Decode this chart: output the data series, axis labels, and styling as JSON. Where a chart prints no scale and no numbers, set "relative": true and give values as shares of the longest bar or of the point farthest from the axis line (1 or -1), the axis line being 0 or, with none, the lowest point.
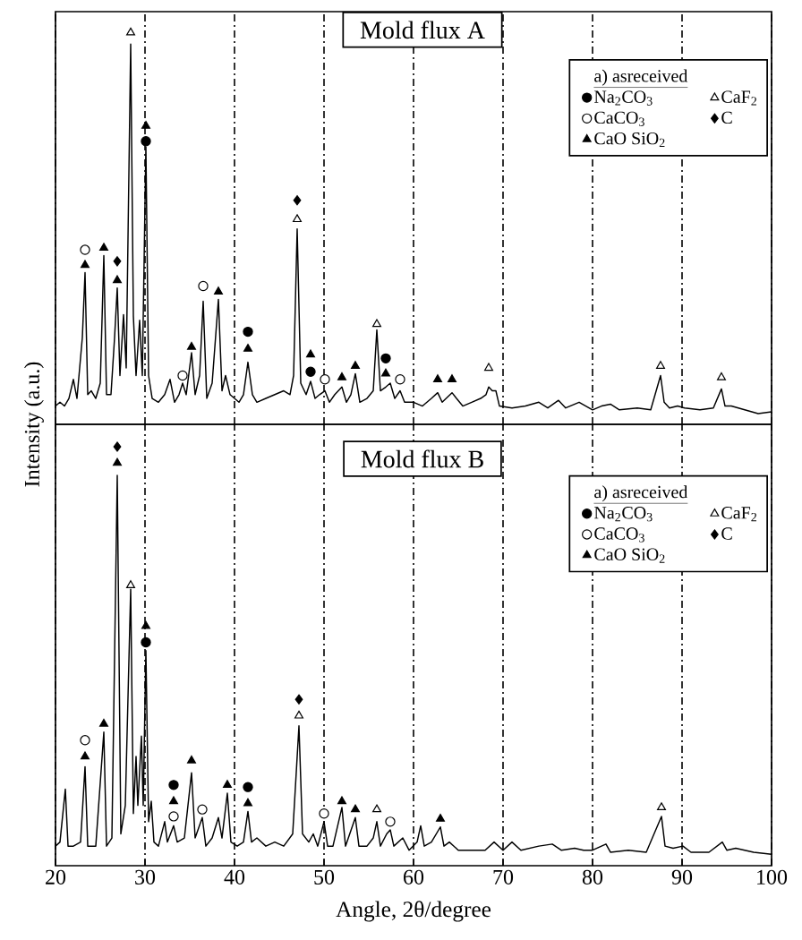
{
  "chart_data": [
    {
      "type": "line",
      "relative": true,
      "title": "Mold flux A",
      "ylabel": "Intensity (a.u.)",
      "legend_title": "a) asreceived",
      "legend": "top right",
      "grid": "x",
      "tick_labels": false,
      "xlim": [
        20,
        100
      ],
      "xticks": [
        20,
        30,
        40,
        50,
        60,
        70,
        80,
        90,
        100
      ],
      "series": [
        {
          "color": "#000000",
          "marker": "none",
          "x": [
            20,
            20.5,
            21,
            21.5,
            22,
            22.4,
            23.0,
            23.3,
            23.6,
            24,
            24.5,
            25.0,
            25.4,
            25.7,
            26.2,
            26.6,
            26.9,
            27.2,
            27.6,
            27.9,
            28.4,
            28.7,
            29.0,
            29.4,
            29.7,
            30.1,
            30.4,
            30.8,
            31.5,
            32.2,
            32.8,
            33.3,
            33.8,
            34.2,
            34.6,
            35.2,
            35.6,
            36.1,
            36.5,
            36.9,
            37.5,
            38.2,
            38.6,
            39.0,
            39.5,
            40,
            40.5,
            41.0,
            41.5,
            42,
            42.5,
            43.5,
            44.5,
            45.5,
            46.2,
            46.6,
            47.0,
            47.4,
            48.0,
            48.5,
            49.0,
            49.5,
            50.1,
            50.6,
            51.2,
            52.0,
            52.5,
            53.0,
            53.5,
            54,
            54.8,
            55.5,
            55.9,
            56.3,
            56.9,
            57.4,
            57.9,
            58.5,
            59,
            60,
            61,
            62,
            62.7,
            63.2,
            64.3,
            64.8,
            65.5,
            66.5,
            67.5,
            68.1,
            68.4,
            68.8,
            69.2,
            69.6,
            71,
            72.5,
            74,
            75,
            76.2,
            77,
            78.5,
            80,
            81,
            82,
            83,
            85,
            86.5,
            87.6,
            88,
            88.6,
            89.5,
            90.3,
            92,
            93.5,
            94.4,
            94.8,
            95.5,
            97,
            98.5,
            100
          ],
          "values": [
            0.02,
            0.03,
            0.02,
            0.04,
            0.09,
            0.04,
            0.2,
            0.37,
            0.05,
            0.06,
            0.04,
            0.08,
            0.415,
            0.05,
            0.05,
            0.2,
            0.33,
            0.1,
            0.26,
            0.12,
            0.97,
            0.256,
            0.1,
            0.245,
            0.1,
            0.7,
            0.1,
            0.04,
            0.03,
            0.05,
            0.09,
            0.03,
            0.05,
            0.08,
            0.05,
            0.16,
            0.05,
            0.1,
            0.295,
            0.04,
            0.08,
            0.3,
            0.06,
            0.1,
            0.05,
            0.04,
            0.03,
            0.05,
            0.135,
            0.05,
            0.03,
            0.04,
            0.05,
            0.06,
            0.05,
            0.1,
            0.485,
            0.08,
            0.05,
            0.085,
            0.04,
            0.05,
            0.06,
            0.03,
            0.05,
            0.07,
            0.03,
            0.05,
            0.105,
            0.03,
            0.04,
            0.06,
            0.22,
            0.06,
            0.07,
            0.08,
            0.04,
            0.06,
            0.03,
            0.03,
            0.02,
            0.04,
            0.055,
            0.03,
            0.055,
            0.04,
            0.02,
            0.03,
            0.04,
            0.05,
            0.07,
            0.06,
            0.06,
            0.02,
            0.015,
            0.02,
            0.03,
            0.015,
            0.035,
            0.015,
            0.03,
            0.01,
            0.02,
            0.025,
            0.01,
            0.015,
            0.01,
            0.1,
            0.03,
            0.015,
            0.02,
            0.015,
            0.01,
            0.015,
            0.065,
            0.02,
            0.02,
            0.01,
            0.0,
            0.005
          ]
        },
        {
          "type": "scatter",
          "name": "Na$_{2}$CO$_{3}$",
          "color": "#000000",
          "marker": "circle",
          "x": [
            30.1,
            41.5,
            48.5,
            56.9
          ],
          "values": [
            0.715,
            0.215,
            0.11,
            0.145
          ]
        },
        {
          "type": "scatter",
          "name": "CaCO$_{3}$",
          "color": "#ffffff",
          "marker": "circle",
          "x": [
            23.3,
            34.2,
            36.5,
            50.1,
            58.5
          ],
          "values": [
            0.43,
            0.1,
            0.335,
            0.09,
            0.09
          ]
        },
        {
          "type": "scatter",
          "name": "CaO SiO$_{2}$",
          "color": "#000000",
          "marker": "triangle",
          "x": [
            23.3,
            25.4,
            26.9,
            30.1,
            35.2,
            38.2,
            41.5,
            48.5,
            52.0,
            53.5,
            56.9,
            62.7,
            64.3
          ],
          "values": [
            0.39,
            0.435,
            0.35,
            0.755,
            0.175,
            0.32,
            0.17,
            0.155,
            0.095,
            0.125,
            0.105,
            0.09,
            0.09
          ]
        },
        {
          "type": "scatter",
          "name": "CaF$_{2}$",
          "color": "#ffffff",
          "marker": "triangle",
          "x": [
            28.4,
            47.0,
            55.9,
            68.4,
            87.6,
            94.4
          ],
          "values": [
            1.0,
            0.51,
            0.235,
            0.12,
            0.125,
            0.095
          ]
        },
        {
          "type": "scatter",
          "name": "C",
          "color": "#000000",
          "marker": "diamond",
          "x": [
            26.9,
            47.0
          ],
          "values": [
            0.4,
            0.56
          ]
        }
      ]
    },
    {
      "type": "line",
      "relative": true,
      "title": "Mold flux B",
      "xlabel": "Angle, 2θ/degree",
      "legend_title": "a) asreceived",
      "legend": "top right",
      "grid": "x",
      "tick_labels": "x",
      "xlim": [
        20,
        100
      ],
      "xticks": [
        20,
        30,
        40,
        50,
        60,
        70,
        80,
        90,
        100
      ],
      "series": [
        {
          "color": "#000000",
          "marker": "none",
          "x": [
            20,
            20.5,
            21.1,
            21.4,
            22,
            22.8,
            23.3,
            23.6,
            24.5,
            25.4,
            25.7,
            26.3,
            26.9,
            27.3,
            27.8,
            28.4,
            28.7,
            29.0,
            29.2,
            29.6,
            29.8,
            30.1,
            30.4,
            30.7,
            31.0,
            31.5,
            32.2,
            32.5,
            33.2,
            33.6,
            34.4,
            35.2,
            35.6,
            36.4,
            36.8,
            37.5,
            38.2,
            38.6,
            39.2,
            39.6,
            40.3,
            41.0,
            41.5,
            41.9,
            42.5,
            43.5,
            44.5,
            45.5,
            46.5,
            47.2,
            47.6,
            48.3,
            48.8,
            49.3,
            50.0,
            50.4,
            51,
            52.0,
            52.4,
            53.5,
            53.9,
            54.8,
            55.5,
            55.9,
            56.3,
            57.0,
            57.4,
            57.8,
            58.8,
            59.5,
            60.4,
            60.8,
            61.2,
            62,
            63.0,
            63.4,
            64,
            65,
            66.5,
            68,
            69,
            70,
            71,
            72,
            74,
            75.5,
            76.5,
            78,
            79,
            80,
            81.5,
            82,
            84,
            86,
            87.7,
            88.1,
            89,
            90.1,
            91,
            93,
            94.5,
            95,
            96,
            98,
            100
          ],
          "values": [
            0.02,
            0.03,
            0.16,
            0.02,
            0.02,
            0.03,
            0.215,
            0.02,
            0.02,
            0.3,
            0.02,
            0.04,
            0.93,
            0.05,
            0.12,
            0.65,
            0.1,
            0.24,
            0.12,
            0.29,
            0.12,
            0.5,
            0.08,
            0.13,
            0.03,
            0.02,
            0.08,
            0.03,
            0.07,
            0.03,
            0.04,
            0.2,
            0.04,
            0.09,
            0.02,
            0.04,
            0.09,
            0.04,
            0.15,
            0.03,
            0.02,
            0.03,
            0.105,
            0.03,
            0.04,
            0.02,
            0.03,
            0.02,
            0.05,
            0.315,
            0.05,
            0.03,
            0.05,
            0.02,
            0.08,
            0.02,
            0.02,
            0.115,
            0.02,
            0.09,
            0.02,
            0.02,
            0.04,
            0.08,
            0.02,
            0.05,
            0.06,
            0.02,
            0.04,
            0.01,
            0.03,
            0.07,
            0.02,
            0.03,
            0.067,
            0.02,
            0.03,
            0.01,
            0.01,
            0.01,
            0.03,
            0.01,
            0.03,
            0.01,
            0.02,
            0.025,
            0.01,
            0.015,
            0.01,
            0.01,
            0.025,
            0.005,
            0.01,
            0.005,
            0.093,
            0.02,
            0.015,
            0.02,
            0.005,
            0.005,
            0.03,
            0.01,
            0.015,
            0.005,
            0.0
          ]
        },
        {
          "type": "scatter",
          "name": "Na$_{2}$CO$_{3}$",
          "color": "#000000",
          "marker": "circle",
          "x": [
            30.1,
            33.2,
            41.5
          ],
          "values": [
            0.52,
            0.17,
            0.165
          ]
        },
        {
          "type": "scatter",
          "name": "CaCO$_{3}$",
          "color": "#ffffff",
          "marker": "circle",
          "x": [
            23.3,
            33.2,
            36.4,
            50.0,
            57.4
          ],
          "values": [
            0.28,
            0.093,
            0.11,
            0.1,
            0.08
          ]
        },
        {
          "type": "scatter",
          "name": "CaO SiO$_{2}$",
          "color": "#000000",
          "marker": "triangle",
          "x": [
            23.3,
            25.4,
            26.9,
            30.1,
            33.2,
            35.2,
            39.2,
            41.5,
            52.0,
            53.5,
            63.0
          ],
          "values": [
            0.24,
            0.32,
            0.96,
            0.56,
            0.13,
            0.23,
            0.17,
            0.125,
            0.13,
            0.11,
            0.087
          ]
        },
        {
          "type": "scatter",
          "name": "CaF$_{2}$",
          "color": "#ffffff",
          "marker": "triangle",
          "x": [
            28.4,
            47.2,
            55.9,
            87.7
          ],
          "values": [
            0.66,
            0.34,
            0.11,
            0.115
          ]
        },
        {
          "type": "scatter",
          "name": "C",
          "color": "#000000",
          "marker": "diamond",
          "x": [
            26.9,
            47.2
          ],
          "values": [
            1.0,
            0.38
          ]
        }
      ]
    }
  ]
}
